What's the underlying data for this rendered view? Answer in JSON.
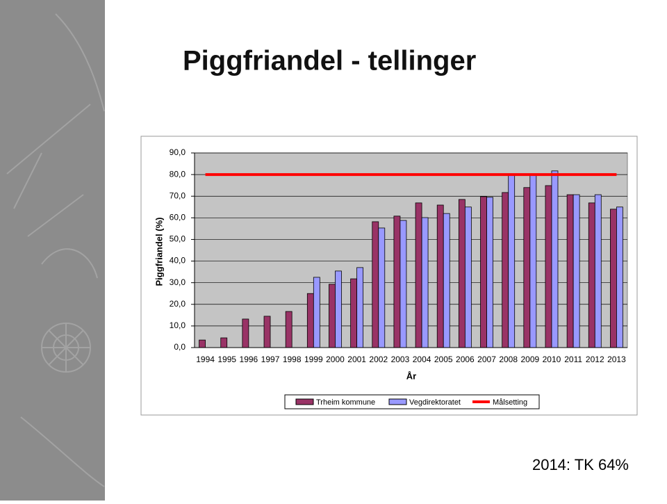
{
  "chart_data": {
    "type": "bar",
    "title": "Piggfriandel - tellinger",
    "y_label": "Piggfriandel (%)",
    "x_label": "År",
    "annotation": "2014: TK 64%",
    "categories": [
      "1994",
      "1995",
      "1996",
      "1997",
      "1998",
      "1999",
      "2000",
      "2001",
      "2002",
      "2003",
      "2004",
      "2005",
      "2006",
      "2007",
      "2008",
      "2009",
      "2010",
      "2011",
      "2012",
      "2013"
    ],
    "series": [
      {
        "name": "Trheim kommune",
        "color": "#993366",
        "type": "bar",
        "values": [
          3.5,
          4.5,
          13.2,
          14.5,
          16.7,
          25,
          29.3,
          31.8,
          58.2,
          60.8,
          66.9,
          65.9,
          68.5,
          69.8,
          71.7,
          74,
          74.9,
          70.7,
          66.9,
          64
        ]
      },
      {
        "name": "Vegdirektoratet",
        "color": "#9999ff",
        "type": "bar",
        "values": [
          null,
          null,
          null,
          null,
          null,
          32.5,
          35.4,
          37,
          55.3,
          58.8,
          60.1,
          62,
          65,
          69.5,
          80,
          80,
          81.7,
          70.7,
          70.7,
          65
        ]
      },
      {
        "name": "Målsetting",
        "color": "#ff0000",
        "type": "line",
        "values": [
          80,
          80,
          80,
          80,
          80,
          80,
          80,
          80,
          80,
          80,
          80,
          80,
          80,
          80,
          80,
          80,
          80,
          80,
          80,
          80
        ]
      }
    ],
    "ylim": [
      0,
      90
    ],
    "yticks": [
      {
        "value": 0,
        "label": "0,0"
      },
      {
        "value": 10,
        "label": "10,0"
      },
      {
        "value": 20,
        "label": "20,0"
      },
      {
        "value": 30,
        "label": "30,0"
      },
      {
        "value": 40,
        "label": "40,0"
      },
      {
        "value": 50,
        "label": "50,0"
      },
      {
        "value": 60,
        "label": "60,0"
      },
      {
        "value": 70,
        "label": "70,0"
      },
      {
        "value": 80,
        "label": "80,0"
      },
      {
        "value": 90,
        "label": "90,0"
      }
    ],
    "grid": true,
    "legend": "bottom"
  }
}
